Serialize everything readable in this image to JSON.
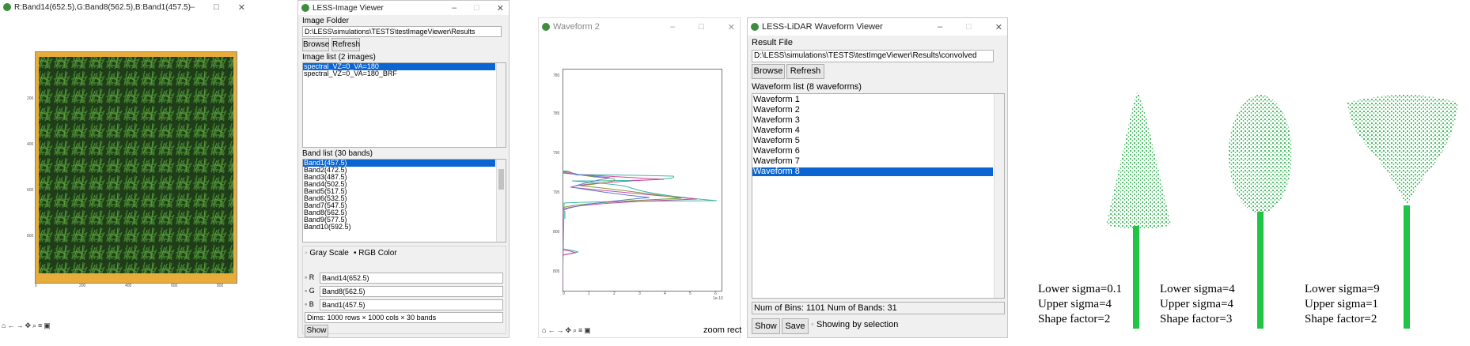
{
  "rgb_viewer": {
    "title": "R:Band14(652.5),G:Band8(562.5),B:Band1(457.5)",
    "yticks": [
      "200",
      "400",
      "600",
      "800"
    ],
    "xticks": [
      "0",
      "200",
      "400",
      "600",
      "800"
    ]
  },
  "image_viewer": {
    "title": "LESS-Image Viewer",
    "folder_label": "Image Folder",
    "folder_path": "D:\\LESS\\simulations\\TESTS\\testImageViewer\\Results",
    "browse": "Browse",
    "refresh": "Refresh",
    "image_list_label": "Image list (2 images)",
    "images": [
      "spectral_VZ=0_VA=180",
      "spectral_VZ=0_VA=180_BRF"
    ],
    "band_list_label": "Band list (30 bands)",
    "bands": [
      "Band1(457.5)",
      "Band2(472.5)",
      "Band3(487.5)",
      "Band4(502.5)",
      "Band5(517.5)",
      "Band6(532.5)",
      "Band7(547.5)",
      "Band8(562.5)",
      "Band9(577.5)",
      "Band10(592.5)"
    ],
    "gray_scale": "Gray Scale",
    "rgb_color": "RGB Color",
    "r_label": "R",
    "r_value": "Band14(652.5)",
    "g_label": "G",
    "g_value": "Band8(562.5)",
    "b_label": "B",
    "b_value": "Band1(457.5)",
    "dims": "Dims: 1000 rows × 1000 cols × 30 bands",
    "show": "Show"
  },
  "waveform2": {
    "title": "Waveform 2",
    "status": "zoom rect",
    "yticks": [
      "780",
      "785",
      "790",
      "795",
      "800",
      "805"
    ],
    "xticks": [
      "0",
      "1",
      "2",
      "3",
      "4",
      "5",
      "6"
    ],
    "x_offset": "1e-10"
  },
  "lidar_viewer": {
    "title": "LESS-LiDAR Waveform Viewer",
    "result_label": "Result File",
    "result_path": "D:\\LESS\\simulations\\TESTS\\testImgeViewer\\Results\\convolved",
    "browse": "Browse",
    "refresh": "Refresh",
    "list_label": "Waveform list (8 waveforms)",
    "waveforms": [
      "Waveform 1",
      "Waveform 2",
      "Waveform 3",
      "Waveform 4",
      "Waveform 5",
      "Waveform 6",
      "Waveform 7",
      "Waveform 8"
    ],
    "info": "Num of Bins: 1101 Num of Bands: 31",
    "show": "Show",
    "save": "Save",
    "showing": "Showing by selection"
  },
  "trees": [
    {
      "l1": "Lower sigma=0.1",
      "l2": "Upper sigma=4",
      "l3": "Shape factor=2"
    },
    {
      "l1": "Lower sigma=4",
      "l2": "Upper sigma=4",
      "l3": "Shape factor=3"
    },
    {
      "l1": "Lower sigma=9",
      "l2": "Upper sigma=1",
      "l3": "Shape factor=2"
    }
  ],
  "colors": {
    "selection": "#0a64d2",
    "tree": "#22c445",
    "crown": "#1aa83c",
    "ground": "#e8ac3a"
  }
}
